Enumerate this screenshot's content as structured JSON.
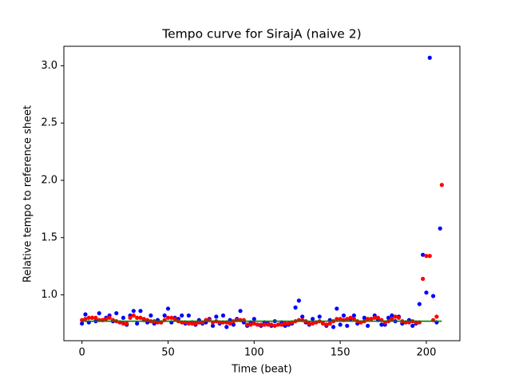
{
  "chart_data": {
    "type": "scatter",
    "title": "Tempo curve for SirajA (naive 2)",
    "xlabel": "Time (beat)",
    "ylabel": "Relative tempo to reference sheet",
    "xlim": [
      -10.5,
      219.5
    ],
    "ylim": [
      0.6,
      3.17
    ],
    "xticks": [
      0,
      50,
      100,
      150,
      200
    ],
    "yticks": [
      {
        "value": 1,
        "label": "1.0"
      },
      1.5,
      {
        "value": 2,
        "label": "2.0"
      },
      2.5,
      {
        "value": 3,
        "label": "3.0"
      }
    ],
    "series": [
      {
        "color": "#0000ff",
        "mode": "points",
        "x": [
          0,
          2,
          4,
          6,
          8,
          10,
          12,
          14,
          16,
          18,
          20,
          22,
          24,
          26,
          28,
          30,
          32,
          34,
          36,
          38,
          40,
          42,
          44,
          46,
          48,
          50,
          52,
          54,
          56,
          58,
          60,
          62,
          64,
          66,
          68,
          70,
          72,
          74,
          76,
          78,
          80,
          82,
          84,
          86,
          88,
          90,
          92,
          94,
          96,
          98,
          100,
          102,
          104,
          106,
          108,
          110,
          112,
          114,
          116,
          118,
          120,
          122,
          124,
          126,
          128,
          130,
          132,
          134,
          136,
          138,
          140,
          142,
          144,
          146,
          148,
          150,
          152,
          154,
          156,
          158,
          160,
          162,
          164,
          166,
          168,
          170,
          172,
          174,
          176,
          178,
          180,
          182,
          184,
          186,
          188,
          190,
          192,
          194,
          196,
          198,
          200,
          202,
          204,
          206,
          208
        ],
        "values": [
          0.75,
          0.83,
          0.76,
          0.8,
          0.77,
          0.84,
          0.78,
          0.8,
          0.82,
          0.77,
          0.84,
          0.76,
          0.8,
          0.74,
          0.82,
          0.86,
          0.75,
          0.86,
          0.78,
          0.76,
          0.82,
          0.75,
          0.78,
          0.76,
          0.82,
          0.88,
          0.76,
          0.8,
          0.79,
          0.82,
          0.75,
          0.82,
          0.76,
          0.74,
          0.78,
          0.75,
          0.76,
          0.79,
          0.73,
          0.81,
          0.75,
          0.82,
          0.72,
          0.78,
          0.74,
          0.79,
          0.86,
          0.76,
          0.73,
          0.76,
          0.79,
          0.74,
          0.73,
          0.76,
          0.75,
          0.73,
          0.77,
          0.74,
          0.76,
          0.73,
          0.74,
          0.75,
          0.89,
          0.95,
          0.81,
          0.76,
          0.74,
          0.79,
          0.76,
          0.81,
          0.75,
          0.73,
          0.78,
          0.72,
          0.88,
          0.74,
          0.82,
          0.73,
          0.79,
          0.82,
          0.75,
          0.76,
          0.8,
          0.73,
          0.79,
          0.82,
          0.78,
          0.74,
          0.74,
          0.8,
          0.82,
          0.77,
          0.81,
          0.75,
          0.76,
          0.78,
          0.73,
          0.75,
          0.92,
          1.35,
          1.02,
          3.07,
          0.99,
          0.76,
          1.58
        ]
      },
      {
        "color": "#ff0000",
        "mode": "points",
        "x": [
          0,
          2,
          4,
          6,
          8,
          10,
          12,
          14,
          16,
          18,
          20,
          22,
          24,
          26,
          28,
          30,
          32,
          34,
          36,
          38,
          40,
          42,
          44,
          46,
          48,
          50,
          52,
          54,
          56,
          58,
          60,
          62,
          64,
          66,
          68,
          70,
          72,
          74,
          76,
          78,
          80,
          82,
          84,
          86,
          88,
          90,
          92,
          94,
          96,
          98,
          100,
          102,
          104,
          106,
          108,
          110,
          112,
          114,
          116,
          118,
          120,
          122,
          124,
          126,
          128,
          130,
          132,
          134,
          136,
          138,
          140,
          142,
          144,
          146,
          148,
          150,
          152,
          154,
          156,
          158,
          160,
          162,
          164,
          166,
          168,
          170,
          172,
          174,
          176,
          178,
          180,
          182,
          184,
          186,
          188,
          190,
          192,
          194,
          196,
          198,
          200,
          202,
          204,
          206,
          209
        ],
        "values": [
          0.78,
          0.79,
          0.8,
          0.8,
          0.8,
          0.78,
          0.78,
          0.79,
          0.8,
          0.78,
          0.77,
          0.76,
          0.75,
          0.75,
          0.8,
          0.82,
          0.8,
          0.8,
          0.79,
          0.78,
          0.77,
          0.77,
          0.76,
          0.76,
          0.78,
          0.8,
          0.8,
          0.79,
          0.77,
          0.76,
          0.76,
          0.75,
          0.75,
          0.75,
          0.76,
          0.76,
          0.78,
          0.78,
          0.76,
          0.77,
          0.76,
          0.76,
          0.76,
          0.75,
          0.77,
          0.78,
          0.78,
          0.78,
          0.74,
          0.74,
          0.75,
          0.74,
          0.74,
          0.74,
          0.74,
          0.74,
          0.73,
          0.74,
          0.74,
          0.75,
          0.75,
          0.76,
          0.77,
          0.78,
          0.78,
          0.77,
          0.75,
          0.75,
          0.76,
          0.77,
          0.75,
          0.74,
          0.75,
          0.77,
          0.79,
          0.79,
          0.78,
          0.79,
          0.8,
          0.79,
          0.77,
          0.76,
          0.77,
          0.79,
          0.79,
          0.8,
          0.8,
          0.78,
          0.76,
          0.77,
          0.79,
          0.81,
          0.8,
          0.77,
          0.76,
          0.76,
          0.77,
          0.76,
          0.76,
          1.14,
          1.34,
          1.34,
          0.78,
          0.81,
          1.96
        ]
      },
      {
        "color": "#008000",
        "mode": "line",
        "x": [
          0,
          209
        ],
        "values": [
          0.77,
          0.77
        ]
      }
    ]
  }
}
